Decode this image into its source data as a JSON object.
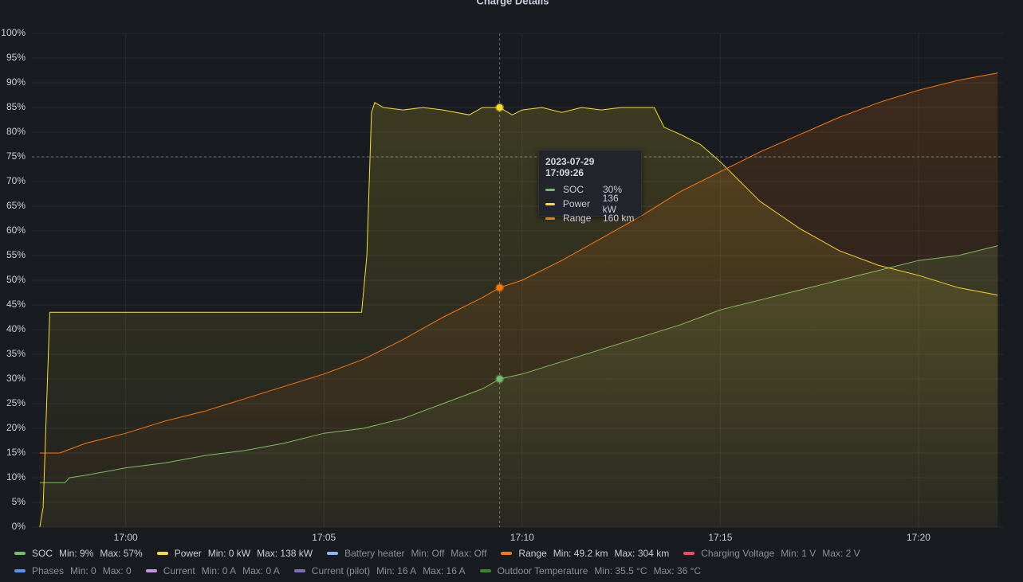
{
  "chart_data": {
    "type": "line",
    "title": "Charge Details",
    "xlim": [
      "16:57:38",
      "17:22:08"
    ],
    "xticks": [
      "17:00",
      "17:05",
      "17:10",
      "17:15",
      "17:20"
    ],
    "ylim": [
      0,
      100
    ],
    "yticks": [
      {
        "value": 0,
        "label": "0%"
      },
      {
        "value": 5,
        "label": "5%"
      },
      {
        "value": 10,
        "label": "10%"
      },
      {
        "value": 15,
        "label": "15%"
      },
      {
        "value": 20,
        "label": "20%"
      },
      {
        "value": 25,
        "label": "25%"
      },
      {
        "value": 30,
        "label": "30%"
      },
      {
        "value": 35,
        "label": "35%"
      },
      {
        "value": 40,
        "label": "40%"
      },
      {
        "value": 45,
        "label": "45%"
      },
      {
        "value": 50,
        "label": "50%"
      },
      {
        "value": 55,
        "label": "55%"
      },
      {
        "value": 60,
        "label": "60%"
      },
      {
        "value": 65,
        "label": "65%"
      },
      {
        "value": 70,
        "label": "70%"
      },
      {
        "value": 75,
        "label": "75%"
      },
      {
        "value": 80,
        "label": "80%"
      },
      {
        "value": 85,
        "label": "85%"
      },
      {
        "value": 90,
        "label": "90%"
      },
      {
        "value": 95,
        "label": "95%"
      },
      {
        "value": 100,
        "label": "100%"
      }
    ],
    "grid": true,
    "series": [
      {
        "name": "SOC",
        "color": "#73bf69",
        "min": "Min: 9%",
        "max": "Max: 57%",
        "x": [
          "16:57:50",
          "16:58:28",
          "16:58:35",
          "16:59:00",
          "17:00:00",
          "17:01:00",
          "17:02:00",
          "17:03:00",
          "17:04:00",
          "17:05:00",
          "17:06:00",
          "17:07:00",
          "17:08:00",
          "17:09:00",
          "17:09:26",
          "17:10:00",
          "17:11:00",
          "17:12:00",
          "17:13:00",
          "17:14:00",
          "17:15:00",
          "17:16:00",
          "17:17:00",
          "17:18:00",
          "17:19:00",
          "17:20:00",
          "17:21:00",
          "17:22:00"
        ],
        "values": [
          9,
          9,
          10,
          10.5,
          12,
          13,
          14.5,
          15.5,
          17,
          19,
          20,
          22,
          25,
          28,
          30,
          31,
          33.5,
          36,
          38.5,
          41,
          44,
          46,
          48,
          50,
          52,
          54,
          55,
          57
        ]
      },
      {
        "name": "Power",
        "color": "#fade2a",
        "min": "Min: 0 kW",
        "max": "Max: 138 kW",
        "x": [
          "16:57:50",
          "16:57:55",
          "16:58:05",
          "17:05:57",
          "17:06:05",
          "17:06:12",
          "17:06:17",
          "17:06:30",
          "17:07:00",
          "17:07:30",
          "17:08:00",
          "17:08:40",
          "17:09:00",
          "17:09:26",
          "17:09:45",
          "17:10:00",
          "17:10:30",
          "17:11:00",
          "17:11:30",
          "17:12:00",
          "17:12:30",
          "17:13:00",
          "17:13:20",
          "17:13:35",
          "17:14:00",
          "17:14:30",
          "17:15:00",
          "17:15:30",
          "17:16:00",
          "17:17:00",
          "17:18:00",
          "17:19:00",
          "17:20:00",
          "17:21:00",
          "17:22:00"
        ],
        "values": [
          0,
          4,
          43.5,
          43.5,
          55,
          84,
          86,
          85,
          84.5,
          85,
          84.5,
          83.5,
          85,
          85,
          83.5,
          84.5,
          85,
          84,
          85,
          84.5,
          85,
          85,
          85,
          81,
          79.5,
          77.5,
          74,
          70,
          66,
          60.5,
          56,
          53,
          51,
          48.5,
          47
        ]
      },
      {
        "name": "Battery heater",
        "color": "#8ab8ff",
        "min": "Min: Off",
        "max": "Max: Off"
      },
      {
        "name": "Range",
        "color": "#ff780a",
        "min": "Min: 49.2 km",
        "max": "Max: 304 km",
        "x": [
          "16:57:50",
          "16:58:20",
          "16:59:00",
          "17:00:00",
          "17:01:00",
          "17:02:00",
          "17:03:00",
          "17:04:00",
          "17:05:00",
          "17:06:00",
          "17:07:00",
          "17:08:00",
          "17:09:00",
          "17:09:26",
          "17:10:00",
          "17:11:00",
          "17:12:00",
          "17:13:00",
          "17:14:00",
          "17:15:00",
          "17:16:00",
          "17:17:00",
          "17:18:00",
          "17:19:00",
          "17:20:00",
          "17:21:00",
          "17:22:00"
        ],
        "values": [
          15,
          15,
          17,
          19,
          21.5,
          23.5,
          26,
          28.5,
          31,
          34,
          38,
          42.5,
          46.5,
          48.5,
          50,
          54,
          58.5,
          63,
          68,
          72,
          76,
          79.5,
          83,
          86,
          88.5,
          90.5,
          92
        ]
      },
      {
        "name": "Charging Voltage",
        "color": "#f2495c",
        "min": "Min: 1 V",
        "max": "Max: 2 V"
      },
      {
        "name": "Phases",
        "color": "#5794f2",
        "min": "Min: 0",
        "max": "Max: 0"
      },
      {
        "name": "Current",
        "color": "#ca95e5",
        "min": "Min: 0 A",
        "max": "Max: 0 A"
      },
      {
        "name": "Current (pilot)",
        "color": "#806eb7",
        "min": "Min: 16 A",
        "max": "Max: 16 A"
      },
      {
        "name": "Outdoor Temperature",
        "color": "#37872d",
        "min": "Min: 35.5 °C",
        "max": "Max: 36 °C"
      }
    ],
    "tooltip": {
      "time": "2023-07-29 17:09:26",
      "point": "17:09:26",
      "rows": [
        {
          "series": 0,
          "value": "30%"
        },
        {
          "series": 1,
          "value": "136 kW"
        },
        {
          "series": 3,
          "value": "160 km"
        }
      ]
    }
  }
}
